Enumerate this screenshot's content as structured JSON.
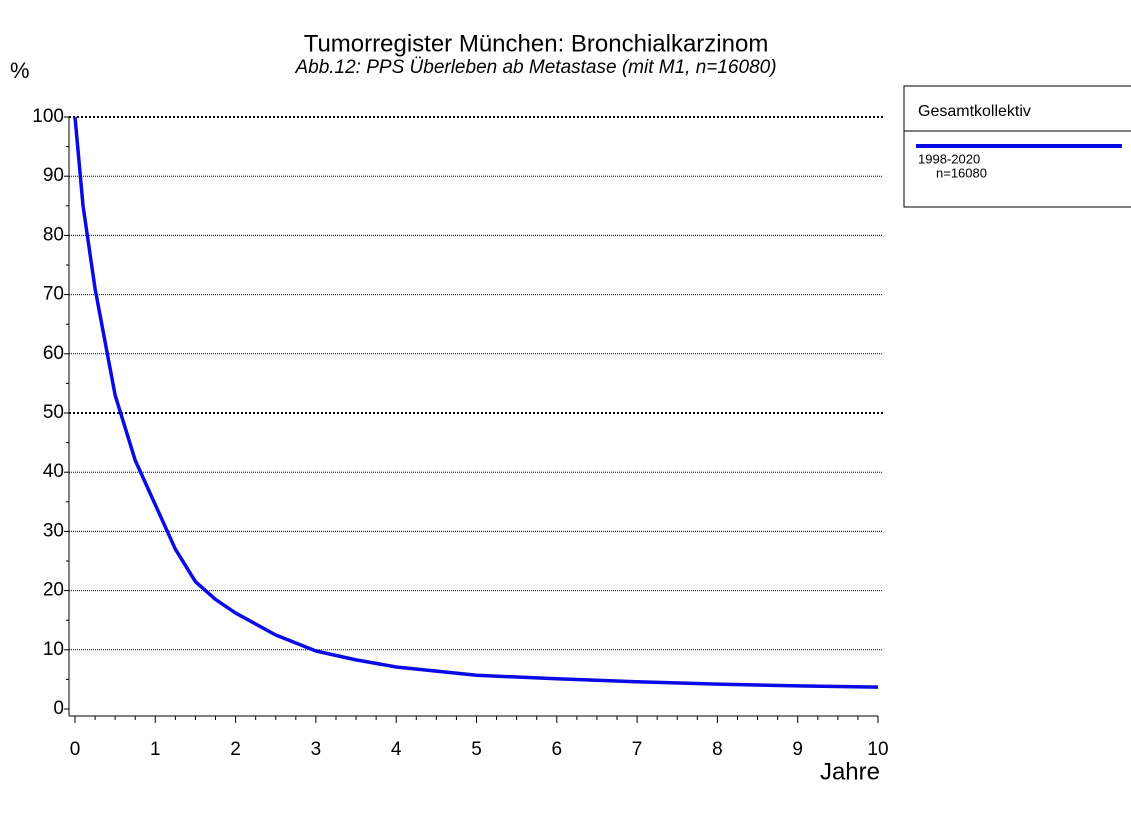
{
  "chart_data": {
    "type": "line",
    "title": "Tumorregister München: Bronchialkarzinom",
    "subtitle": "Abb.12: PPS  Überleben ab Metastase (mit M1, n=16080)",
    "ylabel": "%",
    "xlabel": "Jahre",
    "legend_title": "Gesamtkollektiv",
    "xlim": [
      0,
      10
    ],
    "ylim": [
      0,
      100
    ],
    "xticks": [
      0,
      1,
      2,
      3,
      4,
      5,
      6,
      7,
      8,
      9,
      10
    ],
    "yticks": [
      0,
      10,
      20,
      30,
      40,
      50,
      60,
      70,
      80,
      90,
      100
    ],
    "grid": true,
    "x": [
      0,
      0.1,
      0.25,
      0.5,
      0.75,
      1,
      1.25,
      1.5,
      1.75,
      2,
      2.5,
      3,
      3.5,
      4,
      4.5,
      5,
      6,
      7,
      8,
      9,
      10
    ],
    "series": [
      {
        "name": "1998-2020",
        "label": "n=16080",
        "color": "#0a0ae6",
        "values": [
          100,
          85,
          71,
          53,
          42,
          34.5,
          27,
          21.5,
          18.5,
          16.2,
          12.5,
          9.8,
          8.3,
          7.1,
          6.4,
          5.7,
          5.1,
          4.6,
          4.2,
          3.9,
          3.7
        ]
      }
    ]
  }
}
